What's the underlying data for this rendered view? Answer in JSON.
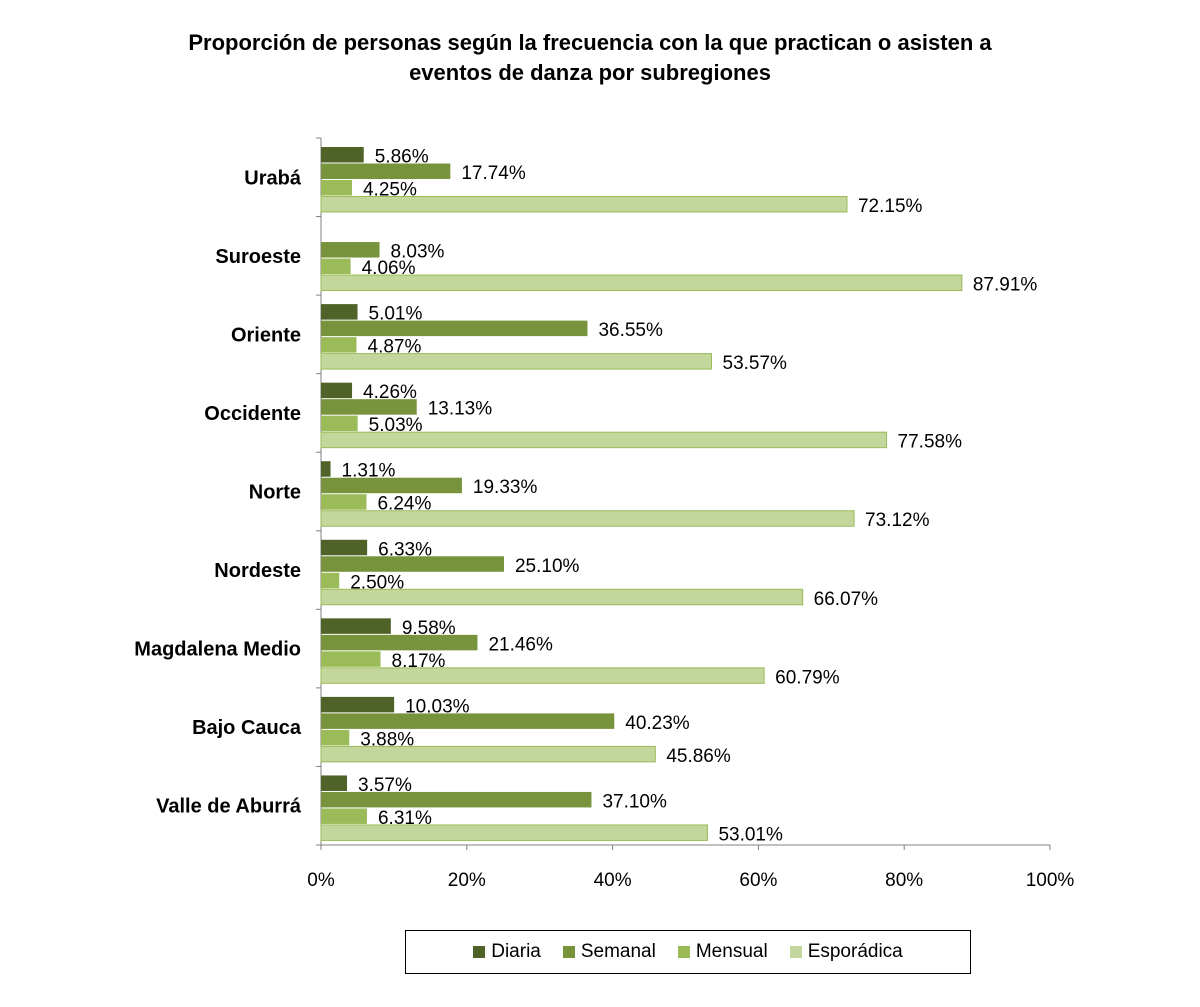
{
  "chart_data": {
    "type": "bar",
    "orientation": "horizontal",
    "title_lines": [
      "Proporción de personas según la frecuencia con la que practican o asisten a",
      "eventos de danza por subregiones"
    ],
    "categories": [
      "Urabá",
      "Suroeste",
      "Oriente",
      "Occidente",
      "Norte",
      "Nordeste",
      "Magdalena Medio",
      "Bajo Cauca",
      "Valle de Aburrá"
    ],
    "series": [
      {
        "name": "Diaria",
        "color": "#4f6228",
        "values": [
          5.86,
          null,
          5.01,
          4.26,
          1.31,
          6.33,
          9.58,
          10.03,
          3.57
        ],
        "labels": [
          "5.86%",
          "",
          "5.01%",
          "4.26%",
          "1.31%",
          "6.33%",
          "9.58%",
          "10.03%",
          "3.57%"
        ]
      },
      {
        "name": "Semanal",
        "color": "#77933c",
        "values": [
          17.74,
          8.03,
          36.55,
          13.13,
          19.33,
          25.1,
          21.46,
          40.23,
          37.1
        ],
        "labels": [
          "17.74%",
          "8.03%",
          "36.55%",
          "13.13%",
          "19.33%",
          "25.10%",
          "21.46%",
          "40.23%",
          "37.10%"
        ]
      },
      {
        "name": "Mensual",
        "color": "#9bbb59",
        "values": [
          4.25,
          4.06,
          4.87,
          5.03,
          6.24,
          2.5,
          8.17,
          3.88,
          6.31
        ],
        "labels": [
          "4.25%",
          "4.06%",
          "4.87%",
          "5.03%",
          "6.24%",
          "2.50%",
          "8.17%",
          "3.88%",
          "6.31%"
        ]
      },
      {
        "name": "Esporádica",
        "color": "#c3d69b",
        "values": [
          72.15,
          87.91,
          53.57,
          77.58,
          73.12,
          66.07,
          60.79,
          45.86,
          53.01
        ],
        "labels": [
          "72.15%",
          "87.91%",
          "53.57%",
          "77.58%",
          "73.12%",
          "66.07%",
          "60.79%",
          "45.86%",
          "53.01%"
        ]
      }
    ],
    "xlim": [
      0,
      100
    ],
    "x_ticks": [
      0,
      20,
      40,
      60,
      80,
      100
    ],
    "x_tick_labels": [
      "0%",
      "20%",
      "40%",
      "60%",
      "80%",
      "100%"
    ],
    "grid": false,
    "legend_position": "bottom"
  }
}
